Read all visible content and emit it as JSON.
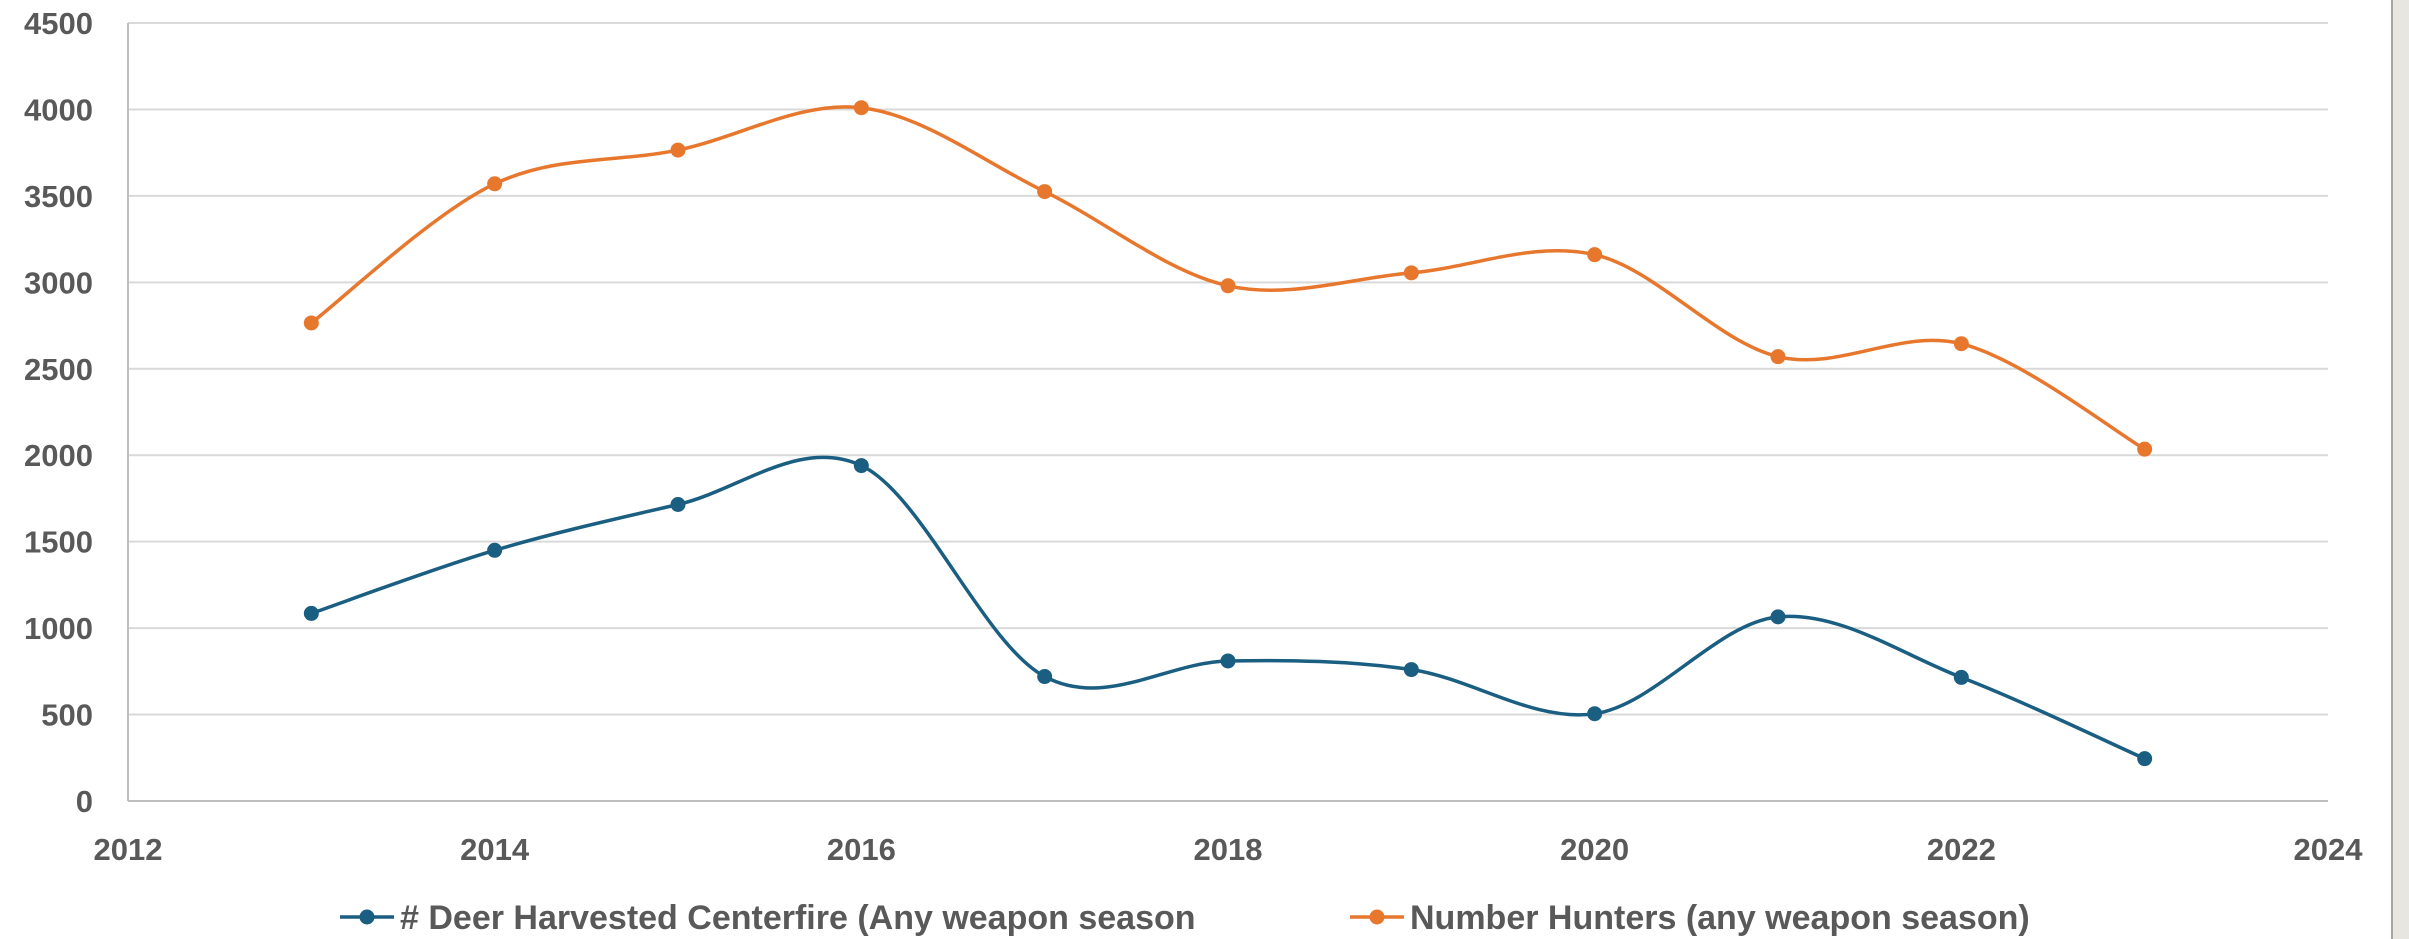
{
  "chart_data": {
    "type": "line",
    "title": "",
    "xlabel": "",
    "ylabel": "",
    "xlim": [
      2012,
      2024
    ],
    "ylim": [
      0,
      4500
    ],
    "x_ticks": [
      2012,
      2014,
      2016,
      2018,
      2020,
      2022,
      2024
    ],
    "y_ticks": [
      0,
      500,
      1000,
      1500,
      2000,
      2500,
      3000,
      3500,
      4000,
      4500
    ],
    "grid": "horizontal",
    "smooth": true,
    "legend_position": "bottom",
    "x": [
      2013,
      2014,
      2015,
      2016,
      2017,
      2018,
      2019,
      2020,
      2021,
      2022,
      2023
    ],
    "series": [
      {
        "name": "# Deer Harvested Centerfire (Any weapon season",
        "color": "#1a5e82",
        "values": [
          1085,
          1450,
          1715,
          1940,
          720,
          810,
          760,
          505,
          1065,
          715,
          245
        ]
      },
      {
        "name": "Number Hunters (any weapon season)",
        "color": "#e8772e",
        "values": [
          2765,
          3570,
          3765,
          4010,
          3525,
          2980,
          3055,
          3160,
          2570,
          2645,
          2035
        ]
      }
    ]
  }
}
